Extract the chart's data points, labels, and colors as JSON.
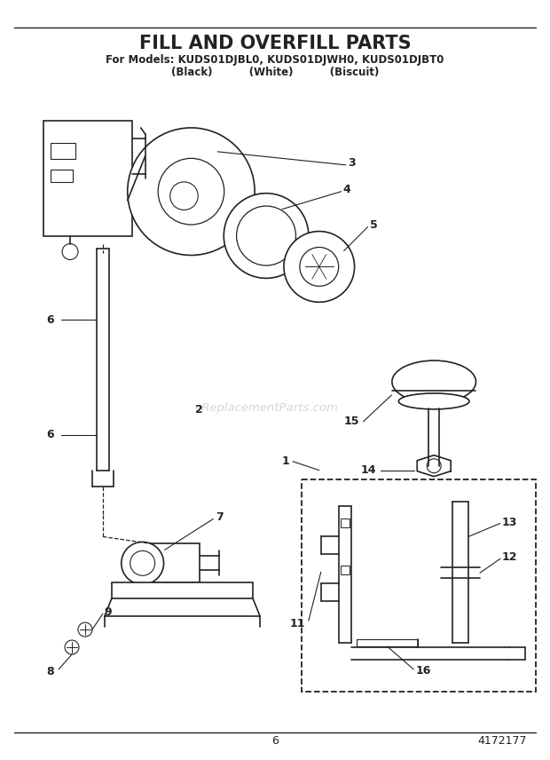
{
  "title": "FILL AND OVERFILL PARTS",
  "subtitle": "For Models: KUDS01DJBL0, KUDS01DJWH0, KUDS01DJBT0",
  "subtitle2": "(Black)          (White)          (Biscuit)",
  "page_num": "6",
  "part_num": "4172177",
  "watermark": "eReplacementParts.com",
  "bg_color": "#ffffff",
  "line_color": "#222222",
  "fig_w": 6.2,
  "fig_h": 8.56,
  "dpi": 100
}
